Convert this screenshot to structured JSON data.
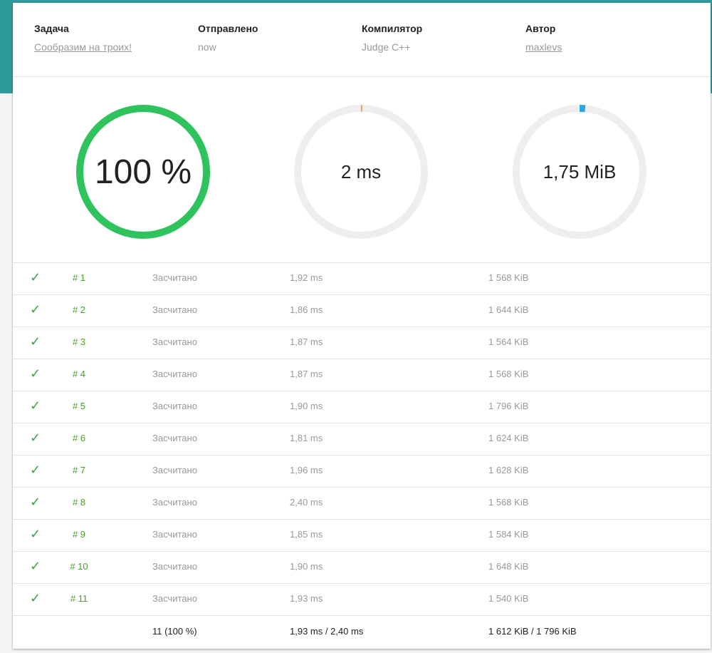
{
  "info": {
    "task": {
      "label": "Задача",
      "value": "Сообразим на троих!"
    },
    "sent": {
      "label": "Отправлено",
      "value": "now"
    },
    "compiler": {
      "label": "Компилятор",
      "value": "Judge C++"
    },
    "author": {
      "label": "Автор",
      "value": "maxlevs"
    }
  },
  "gauges": {
    "score": {
      "text": "100 %",
      "fraction": 1.0,
      "color": "#2ec35c"
    },
    "time": {
      "text": "2 ms",
      "fraction": 0.003,
      "color": "#f0a030"
    },
    "memory": {
      "text": "1,75 MiB",
      "fraction": 0.014,
      "color": "#2aa8e0"
    }
  },
  "tests": [
    {
      "num": "# 1",
      "status": "Засчитано",
      "time": "1,92 ms",
      "memory": "1 568 KiB"
    },
    {
      "num": "# 2",
      "status": "Засчитано",
      "time": "1,86 ms",
      "memory": "1 644 KiB"
    },
    {
      "num": "# 3",
      "status": "Засчитано",
      "time": "1,87 ms",
      "memory": "1 564 KiB"
    },
    {
      "num": "# 4",
      "status": "Засчитано",
      "time": "1,87 ms",
      "memory": "1 568 KiB"
    },
    {
      "num": "# 5",
      "status": "Засчитано",
      "time": "1,90 ms",
      "memory": "1 796 KiB"
    },
    {
      "num": "# 6",
      "status": "Засчитано",
      "time": "1,81 ms",
      "memory": "1 624 KiB"
    },
    {
      "num": "# 7",
      "status": "Засчитано",
      "time": "1,96 ms",
      "memory": "1 628 KiB"
    },
    {
      "num": "# 8",
      "status": "Засчитано",
      "time": "2,40 ms",
      "memory": "1 568 KiB"
    },
    {
      "num": "# 9",
      "status": "Засчитано",
      "time": "1,85 ms",
      "memory": "1 584 KiB"
    },
    {
      "num": "# 10",
      "status": "Засчитано",
      "time": "1,90 ms",
      "memory": "1 648 KiB"
    },
    {
      "num": "# 11",
      "status": "Засчитано",
      "time": "1,93 ms",
      "memory": "1 540 KiB"
    }
  ],
  "summary": {
    "passed": "11 (100 %)",
    "time": "1,93 ms / 2,40 ms",
    "memory": "1 612 KiB / 1 796 KiB"
  },
  "icons": {
    "test_status": "check-icon"
  }
}
